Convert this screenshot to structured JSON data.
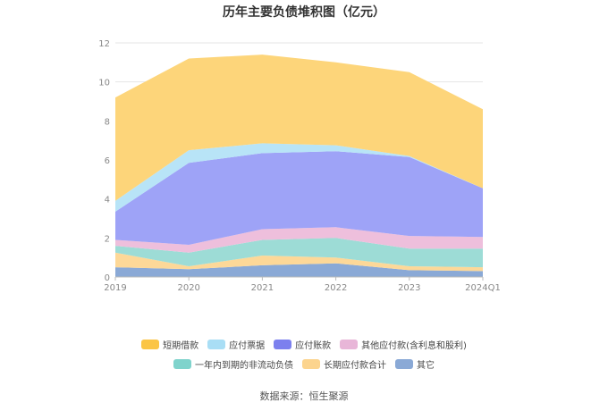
{
  "title": "历年主要负债堆积图（亿元）",
  "source": "数据来源：恒生聚源",
  "chart_data": {
    "type": "area",
    "stacked": true,
    "categories": [
      "2019",
      "2020",
      "2021",
      "2022",
      "2023",
      "2024Q1"
    ],
    "ylim": [
      0,
      12
    ],
    "yticks": [
      0,
      2,
      4,
      6,
      8,
      10,
      12
    ],
    "grid": true,
    "legend_position": "bottom",
    "series": [
      {
        "name": "其它",
        "color": "#8aa9d6",
        "values": [
          0.5,
          0.4,
          0.6,
          0.7,
          0.35,
          0.3
        ]
      },
      {
        "name": "长期应付款合计",
        "color": "#fdd898",
        "values": [
          0.75,
          0.15,
          0.5,
          0.3,
          0.2,
          0.2
        ]
      },
      {
        "name": "一年内到期的非流动负债",
        "color": "#9ddcd6",
        "values": [
          0.35,
          0.7,
          0.8,
          1.0,
          0.9,
          0.95
        ]
      },
      {
        "name": "其他应付款(含利息和股利)",
        "color": "#eebfdc",
        "values": [
          0.3,
          0.4,
          0.55,
          0.55,
          0.65,
          0.6
        ]
      },
      {
        "name": "应付账款",
        "color": "#9ea3f7",
        "values": [
          1.45,
          4.2,
          3.9,
          3.9,
          4.05,
          2.5
        ]
      },
      {
        "name": "应付票据",
        "color": "#b8e4f7",
        "values": [
          0.55,
          0.65,
          0.5,
          0.3,
          0.05,
          0.0
        ]
      },
      {
        "name": "短期借款",
        "color": "#fdd57a",
        "values": [
          5.3,
          4.7,
          4.55,
          4.25,
          4.3,
          4.05
        ]
      }
    ]
  },
  "legend": {
    "row1": [
      {
        "label": "短期借款",
        "color": "#fbc545"
      },
      {
        "label": "应付票据",
        "color": "#a9def5"
      },
      {
        "label": "应付账款",
        "color": "#7c80ee"
      },
      {
        "label": "其他应付款(含利息和股利)",
        "color": "#e8b6d8"
      }
    ],
    "row2": [
      {
        "label": "一年内到期的非流动负债",
        "color": "#7fd3cc"
      },
      {
        "label": "长期应付款合计",
        "color": "#fcd48e"
      },
      {
        "label": "其它",
        "color": "#8aa9d6"
      }
    ]
  }
}
